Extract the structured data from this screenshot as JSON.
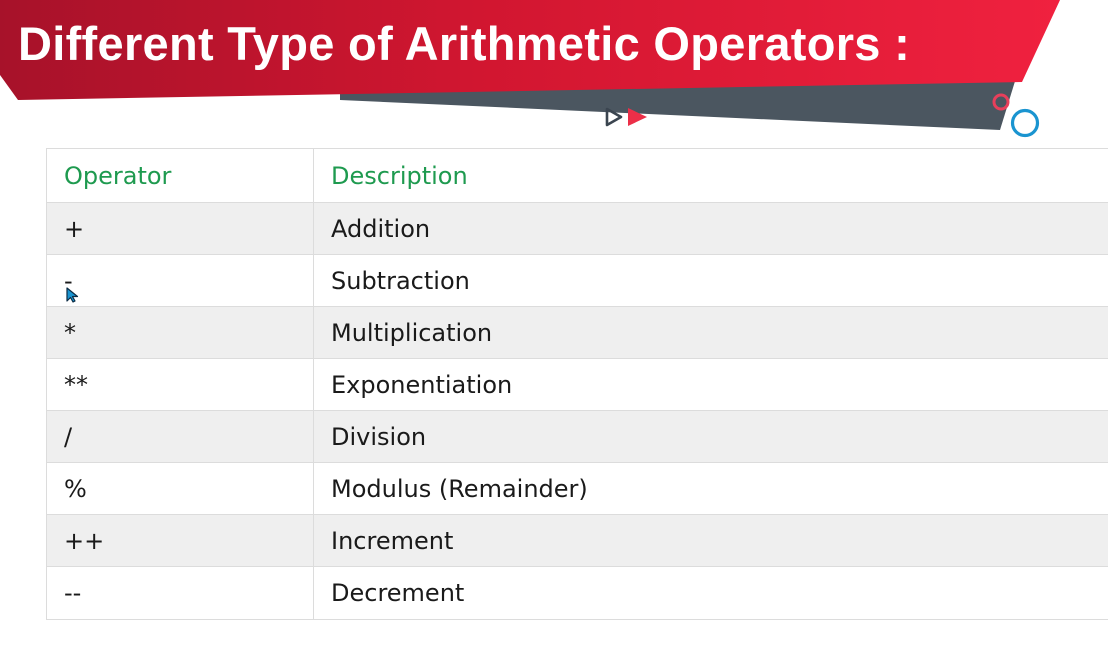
{
  "slide": {
    "title": "Different Type of Arithmetic Operators :"
  },
  "colors": {
    "banner_red": "#d41530",
    "banner_gray": "#4b5660",
    "header_text_green": "#1e9a4f",
    "row_stripe": "#efefef",
    "accent_blue": "#1a94d0",
    "accent_pink": "#e83f5b"
  },
  "table": {
    "headers": {
      "operator": "Operator",
      "description": "Description"
    },
    "rows": [
      {
        "operator": "+",
        "description": "Addition"
      },
      {
        "operator": "-",
        "description": "Subtraction"
      },
      {
        "operator": "*",
        "description": "Multiplication"
      },
      {
        "operator": "**",
        "description": "Exponentiation"
      },
      {
        "operator": "/",
        "description": "Division"
      },
      {
        "operator": "%",
        "description": "Modulus (Remainder)"
      },
      {
        "operator": "++",
        "description": "Increment"
      },
      {
        "operator": "--",
        "description": "Decrement"
      }
    ]
  },
  "icons": {
    "play": "play-arrows-icon",
    "circles": "decorative-circles-icon",
    "cursor": "mouse-cursor-icon"
  }
}
